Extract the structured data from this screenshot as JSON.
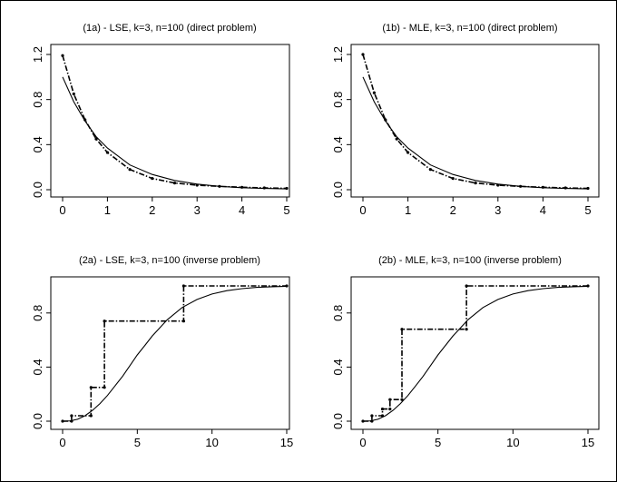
{
  "chart_data": [
    {
      "type": "line",
      "title": "(1a) - LSE, k=3, n=100 (direct problem)",
      "xlim": [
        0,
        5
      ],
      "ylim": [
        0,
        1.2
      ],
      "xticks": [
        0,
        1,
        2,
        3,
        4,
        5
      ],
      "yticks": [
        0.0,
        0.4,
        0.8,
        1.2
      ],
      "xtick_labels": [
        "0",
        "1",
        "2",
        "3",
        "4",
        "5"
      ],
      "ytick_labels": [
        "0.0",
        "0.4",
        "0.8",
        "1.2"
      ],
      "series": [
        {
          "style": "solid",
          "x": [
            0,
            0.25,
            0.5,
            0.75,
            1,
            1.5,
            2,
            2.5,
            3,
            3.5,
            4,
            4.5,
            5
          ],
          "y": [
            1.0,
            0.78,
            0.61,
            0.47,
            0.37,
            0.22,
            0.135,
            0.082,
            0.05,
            0.03,
            0.018,
            0.011,
            0.007
          ]
        },
        {
          "style": "dash-dot",
          "markers": true,
          "x": [
            0,
            0.25,
            0.5,
            0.75,
            1,
            1.5,
            2,
            2.5,
            3,
            3.5,
            4,
            4.5,
            5
          ],
          "y": [
            1.19,
            0.85,
            0.62,
            0.45,
            0.33,
            0.18,
            0.1,
            0.06,
            0.04,
            0.03,
            0.022,
            0.016,
            0.012
          ]
        }
      ]
    },
    {
      "type": "line",
      "title": "(1b) - MLE, k=3, n=100 (direct problem)",
      "xlim": [
        0,
        5
      ],
      "ylim": [
        0,
        1.2
      ],
      "xticks": [
        0,
        1,
        2,
        3,
        4,
        5
      ],
      "yticks": [
        0.0,
        0.4,
        0.8,
        1.2
      ],
      "xtick_labels": [
        "0",
        "1",
        "2",
        "3",
        "4",
        "5"
      ],
      "ytick_labels": [
        "0.0",
        "0.4",
        "0.8",
        "1.2"
      ],
      "series": [
        {
          "style": "solid",
          "x": [
            0,
            0.25,
            0.5,
            0.75,
            1,
            1.5,
            2,
            2.5,
            3,
            3.5,
            4,
            4.5,
            5
          ],
          "y": [
            1.0,
            0.78,
            0.61,
            0.47,
            0.37,
            0.22,
            0.135,
            0.082,
            0.05,
            0.03,
            0.018,
            0.011,
            0.007
          ]
        },
        {
          "style": "dash-dot",
          "markers": true,
          "x": [
            0,
            0.25,
            0.5,
            0.75,
            1,
            1.5,
            2,
            2.5,
            3,
            3.5,
            4,
            4.5,
            5
          ],
          "y": [
            1.2,
            0.86,
            0.62,
            0.45,
            0.33,
            0.18,
            0.1,
            0.06,
            0.04,
            0.03,
            0.022,
            0.016,
            0.012
          ]
        }
      ]
    },
    {
      "type": "line",
      "title": "(2a) - LSE, k=3, n=100 (inverse problem)",
      "xlim": [
        0,
        15
      ],
      "ylim": [
        0,
        1.0
      ],
      "xticks": [
        0,
        5,
        10,
        15
      ],
      "yticks": [
        0.0,
        0.4,
        0.8
      ],
      "xtick_labels": [
        "0",
        "5",
        "10",
        "15"
      ],
      "ytick_labels": [
        "0.0",
        "0.4",
        "0.8"
      ],
      "series": [
        {
          "style": "solid",
          "x": [
            0,
            0.5,
            1,
            1.5,
            2,
            2.5,
            3,
            3.5,
            4,
            4.5,
            5,
            5.5,
            6,
            6.5,
            7,
            8,
            9,
            10,
            11,
            12,
            13,
            14,
            15
          ],
          "y": [
            0.0,
            0.002,
            0.014,
            0.04,
            0.08,
            0.13,
            0.19,
            0.26,
            0.33,
            0.41,
            0.49,
            0.56,
            0.63,
            0.69,
            0.75,
            0.84,
            0.9,
            0.94,
            0.965,
            0.98,
            0.989,
            0.994,
            0.997
          ]
        },
        {
          "style": "dash-dot-step",
          "markers": true,
          "x": [
            0,
            0.6,
            0.6,
            1.9,
            1.9,
            2.8,
            2.8,
            8.1,
            8.1,
            15
          ],
          "y": [
            0.0,
            0.0,
            0.04,
            0.04,
            0.25,
            0.25,
            0.74,
            0.74,
            1.0,
            1.0
          ]
        }
      ]
    },
    {
      "type": "line",
      "title": "(2b) - MLE, k=3, n=100 (inverse problem)",
      "xlim": [
        0,
        15
      ],
      "ylim": [
        0,
        1.0
      ],
      "xticks": [
        0,
        5,
        10,
        15
      ],
      "yticks": [
        0.0,
        0.4,
        0.8
      ],
      "xtick_labels": [
        "0",
        "5",
        "10",
        "15"
      ],
      "ytick_labels": [
        "0.0",
        "0.4",
        "0.8"
      ],
      "series": [
        {
          "style": "solid",
          "x": [
            0,
            0.5,
            1,
            1.5,
            2,
            2.5,
            3,
            3.5,
            4,
            4.5,
            5,
            5.5,
            6,
            6.5,
            7,
            8,
            9,
            10,
            11,
            12,
            13,
            14,
            15
          ],
          "y": [
            0.0,
            0.002,
            0.014,
            0.04,
            0.08,
            0.13,
            0.19,
            0.26,
            0.33,
            0.41,
            0.49,
            0.56,
            0.63,
            0.69,
            0.75,
            0.84,
            0.9,
            0.94,
            0.965,
            0.98,
            0.989,
            0.994,
            0.997
          ]
        },
        {
          "style": "dash-dot-step",
          "markers": true,
          "x": [
            0,
            0.6,
            0.6,
            1.3,
            1.3,
            1.8,
            1.8,
            2.6,
            2.6,
            6.9,
            6.9,
            15
          ],
          "y": [
            0.0,
            0.0,
            0.04,
            0.04,
            0.09,
            0.09,
            0.16,
            0.16,
            0.68,
            0.68,
            1.0,
            1.0
          ]
        }
      ]
    }
  ]
}
